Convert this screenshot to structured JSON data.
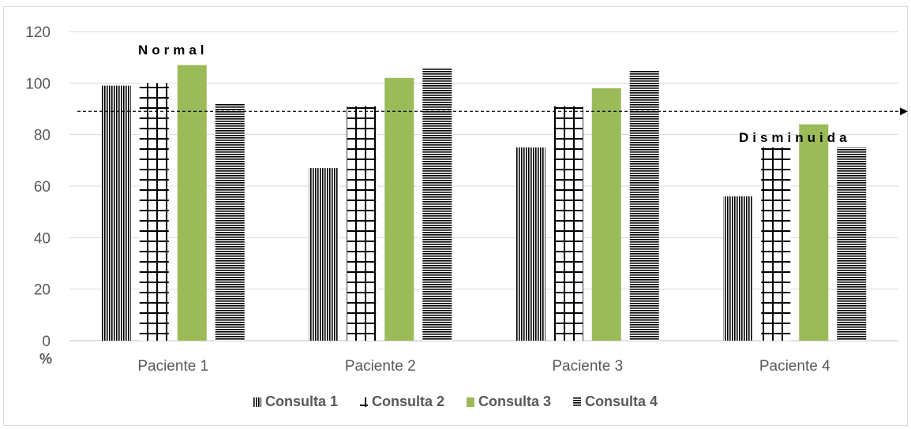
{
  "chart_data": {
    "type": "bar",
    "categories": [
      "Paciente 1",
      "Paciente 2",
      "Paciente 3",
      "Paciente 4"
    ],
    "series": [
      {
        "name": "Consulta 1",
        "values": [
          99,
          67,
          75,
          56
        ],
        "pattern": "vertical-lines",
        "color": "#000000"
      },
      {
        "name": "Consulta 2",
        "values": [
          100,
          91,
          91,
          75
        ],
        "pattern": "grid",
        "color": "#000000"
      },
      {
        "name": "Consulta 3",
        "values": [
          107,
          102,
          98,
          84
        ],
        "pattern": "solid",
        "color": "#9bbb59"
      },
      {
        "name": "Consulta 4",
        "values": [
          92,
          106,
          105,
          75
        ],
        "pattern": "horizontal-lines",
        "color": "#000000"
      }
    ],
    "ylabel": "%",
    "ylim": [
      0,
      120
    ],
    "yticks": [
      0,
      20,
      40,
      60,
      80,
      100,
      120
    ],
    "grid": true,
    "legend": "bottom",
    "threshold": {
      "value": 89,
      "style": "dashed-arrow"
    },
    "annotations": [
      {
        "text": "Normal",
        "category_index": 0,
        "value": 113
      },
      {
        "text": "Disminuida",
        "category_index": 3,
        "value": 79
      }
    ]
  }
}
